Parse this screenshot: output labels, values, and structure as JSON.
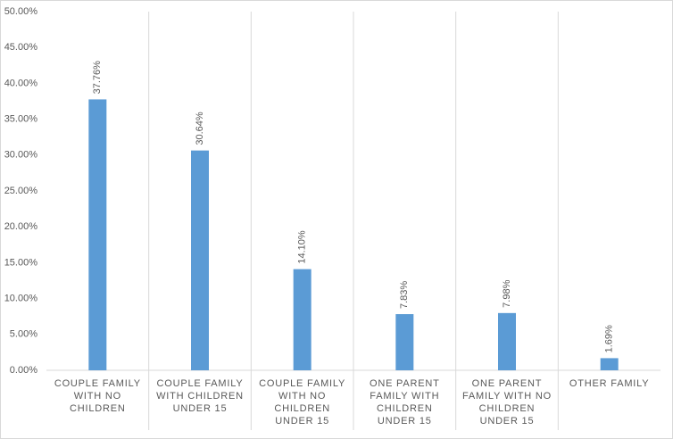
{
  "chart_data": {
    "type": "bar",
    "categories": [
      "COUPLE FAMILY WITH NO CHILDREN",
      "COUPLE FAMILY WITH CHILDREN UNDER 15",
      "COUPLE FAMILY WITH NO CHILDREN UNDER 15",
      "ONE PARENT FAMILY WITH CHILDREN UNDER 15",
      "ONE PARENT FAMILY WITH NO CHILDREN UNDER 15",
      "OTHER FAMILY"
    ],
    "values": [
      37.76,
      30.64,
      14.1,
      7.83,
      7.98,
      1.69
    ],
    "value_labels": [
      "37.76%",
      "30.64%",
      "14.10%",
      "7.83%",
      "7.98%",
      "1.69%"
    ],
    "color": "#5b9bd5",
    "ylim": [
      0,
      50
    ],
    "yticks": [
      {
        "value": 0,
        "label": "0.00%"
      },
      {
        "value": 5,
        "label": "5.00%"
      },
      {
        "value": 10,
        "label": "10.00%"
      },
      {
        "value": 15,
        "label": "15.00%"
      },
      {
        "value": 20,
        "label": "20.00%"
      },
      {
        "value": 25,
        "label": "25.00%"
      },
      {
        "value": 30,
        "label": "30.00%"
      },
      {
        "value": 35,
        "label": "35.00%"
      },
      {
        "value": 40,
        "label": "40.00%"
      },
      {
        "value": 45,
        "label": "45.00%"
      },
      {
        "value": 50,
        "label": "50.00%"
      }
    ],
    "grid": false
  }
}
